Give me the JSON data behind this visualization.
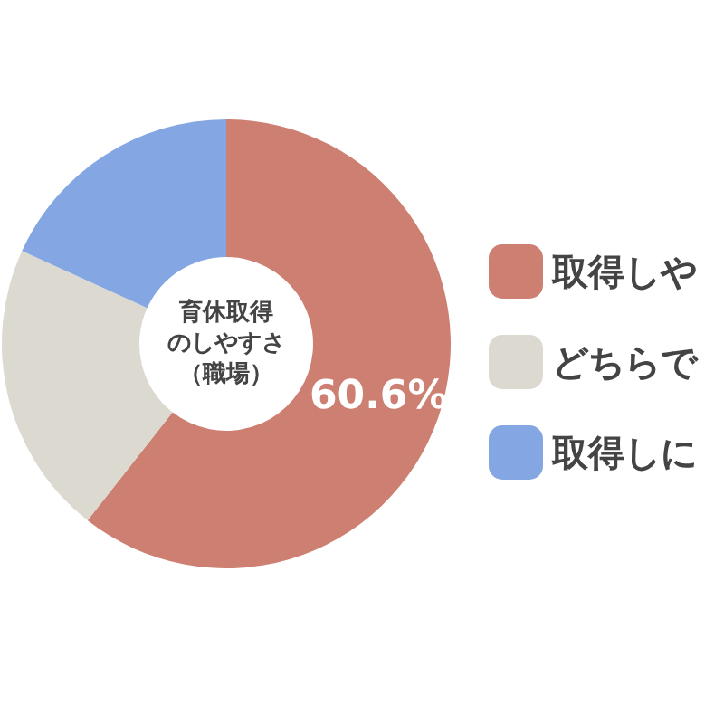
{
  "chart_data": {
    "type": "donut",
    "annotations": [
      "育休取得",
      "のしやすさ",
      "（職場）"
    ],
    "categories": [
      "取得しや",
      "どちらで",
      "取得しに"
    ],
    "values": [
      60.6,
      21.2,
      18.2
    ],
    "colors": [
      "#cd7f72",
      "#dcd9d0",
      "#84a6e2"
    ],
    "value_labels": [
      "60.6%",
      null,
      null
    ],
    "legend": "right"
  }
}
